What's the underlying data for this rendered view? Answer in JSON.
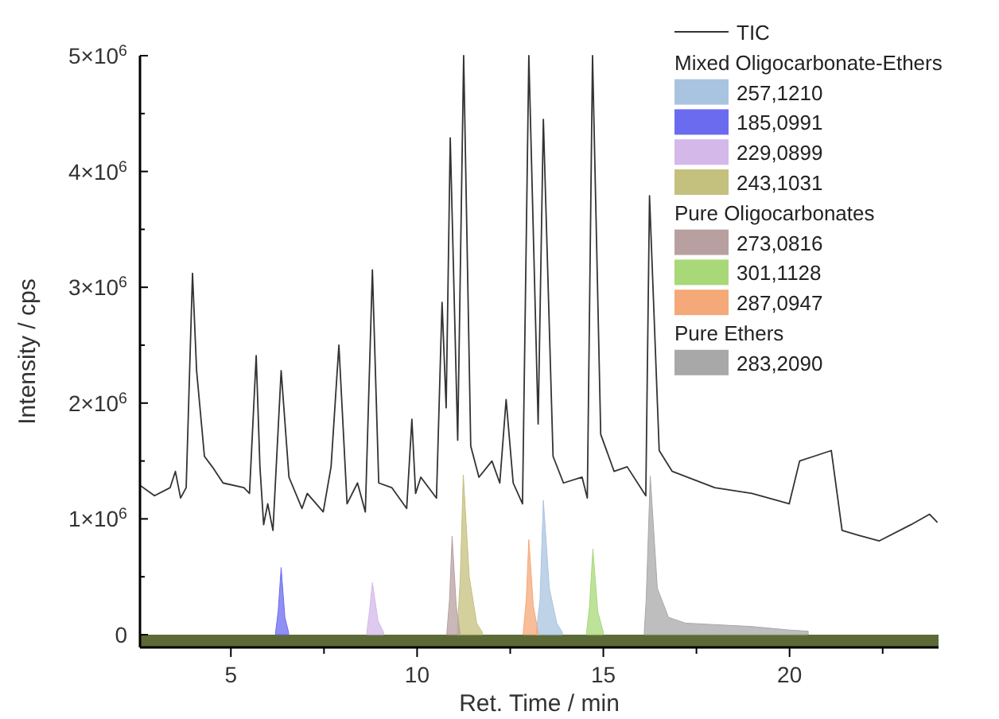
{
  "chart_data": {
    "type": "area",
    "xlabel": "Ret. Time / min",
    "ylabel": "Intensity / cps",
    "xlim": [
      2.56,
      24
    ],
    "ylim": [
      -110000,
      5000000
    ],
    "xticks": [
      5,
      {
        "value": 7.5,
        "label": null
      },
      10,
      {
        "value": 12.5,
        "label": null
      },
      15,
      {
        "value": 17.5,
        "label": null
      },
      20,
      {
        "value": 22.5,
        "label": null
      }
    ],
    "yticks": [
      0,
      {
        "value": 500000,
        "label": null
      },
      {
        "value": 1000000,
        "label": "1×10$^{6}$"
      },
      {
        "value": 1500000,
        "label": null
      },
      {
        "value": 2000000,
        "label": "2×10$^{6}$"
      },
      {
        "value": 2500000,
        "label": null
      },
      {
        "value": 3000000,
        "label": "3×10$^{6}$"
      },
      {
        "value": 3500000,
        "label": null
      },
      {
        "value": 4000000,
        "label": "4×10$^{6}$"
      },
      {
        "value": 4500000,
        "label": null
      },
      {
        "value": 5000000,
        "label": "5×10$^{6}$"
      }
    ],
    "grid": false,
    "legend": "top right",
    "annotations": [
      "Mixed Oligocarbonate-Ethers",
      "Pure Oligocarbonates",
      "Pure Ethers"
    ],
    "bands": [
      {
        "axis": "y",
        "from": -110000,
        "to": 0,
        "color": "#5b6a36"
      }
    ],
    "series": [
      {
        "name": "TIC",
        "type": "line",
        "color": "#333333",
        "x": [
          2.56,
          2.95,
          3.37,
          3.51,
          3.65,
          3.8,
          3.97,
          4.08,
          4.29,
          4.5,
          4.79,
          5.35,
          5.5,
          5.68,
          5.78,
          5.88,
          5.99,
          6.13,
          6.35,
          6.56,
          6.91,
          7.05,
          7.48,
          7.69,
          7.9,
          8.12,
          8.4,
          8.61,
          8.8,
          8.97,
          9.32,
          9.72,
          9.86,
          9.96,
          10.1,
          10.52,
          10.67,
          10.78,
          10.89,
          11.09,
          11.25,
          11.44,
          11.66,
          12.01,
          12.22,
          12.39,
          12.58,
          12.83,
          13.0,
          13.25,
          13.39,
          13.65,
          13.93,
          14.43,
          14.57,
          14.71,
          14.93,
          15.29,
          15.64,
          16.14,
          16.24,
          16.5,
          16.85,
          17.99,
          18.99,
          19.99,
          20.27,
          21.12,
          21.41,
          21.84,
          22.41,
          23.26,
          23.76,
          23.97
        ],
        "values": [
          1290000,
          1200000,
          1270000,
          1410000,
          1180000,
          1270000,
          3120000,
          2280000,
          1540000,
          1450000,
          1310000,
          1270000,
          1220000,
          2410000,
          1450000,
          950000,
          1130000,
          900000,
          2280000,
          1360000,
          1090000,
          1220000,
          1060000,
          1450000,
          2500000,
          1130000,
          1310000,
          1060000,
          3150000,
          1310000,
          1270000,
          1090000,
          1860000,
          1220000,
          1360000,
          1180000,
          2870000,
          1960000,
          4290000,
          1680000,
          5000000,
          1630000,
          1360000,
          1500000,
          1310000,
          2030000,
          1310000,
          1130000,
          5000000,
          1820000,
          4450000,
          1540000,
          1310000,
          1360000,
          1180000,
          5000000,
          1730000,
          1410000,
          1450000,
          1200000,
          3790000,
          1590000,
          1410000,
          1270000,
          1220000,
          1130000,
          1500000,
          1590000,
          900000,
          860000,
          810000,
          950000,
          1040000,
          970000
        ]
      },
      {
        "name": "257,1210",
        "color": "#a9c4e0",
        "x": [
          13.2,
          13.3,
          13.39,
          13.55,
          13.75,
          13.9
        ],
        "values": [
          20000,
          300000,
          1160000,
          400000,
          100000,
          20000
        ]
      },
      {
        "name": "185,0991",
        "color": "#6b6bf0",
        "x": [
          6.2,
          6.27,
          6.35,
          6.45,
          6.55
        ],
        "values": [
          20000,
          200000,
          580000,
          150000,
          20000
        ]
      },
      {
        "name": "229,0899",
        "color": "#d4b8ea",
        "x": [
          8.65,
          8.72,
          8.8,
          8.95,
          9.1
        ],
        "values": [
          20000,
          200000,
          450000,
          120000,
          20000
        ]
      },
      {
        "name": "243,1031",
        "color": "#c4c07e",
        "x": [
          11.08,
          11.16,
          11.24,
          11.4,
          11.6,
          11.75
        ],
        "values": [
          20000,
          500000,
          1380000,
          500000,
          100000,
          20000
        ]
      },
      {
        "name": "273,0816",
        "color": "#b8a0a0",
        "x": [
          10.8,
          10.87,
          10.94,
          11.05,
          11.15
        ],
        "values": [
          20000,
          300000,
          850000,
          250000,
          20000
        ]
      },
      {
        "name": "301,1128",
        "color": "#a8d878",
        "x": [
          14.55,
          14.63,
          14.72,
          14.85,
          15.0
        ],
        "values": [
          20000,
          250000,
          740000,
          200000,
          20000
        ]
      },
      {
        "name": "287,0947",
        "color": "#f5a878",
        "x": [
          12.85,
          12.93,
          13.0,
          13.12,
          13.25
        ],
        "values": [
          20000,
          300000,
          820000,
          250000,
          20000
        ]
      },
      {
        "name": "283,2090",
        "color": "#a8a8a8",
        "x": [
          16.1,
          16.15,
          16.26,
          16.45,
          16.75,
          17.2,
          19.0,
          20.0,
          20.5
        ],
        "values": [
          30000,
          300000,
          1370000,
          400000,
          150000,
          100000,
          70000,
          40000,
          30000
        ]
      }
    ]
  }
}
